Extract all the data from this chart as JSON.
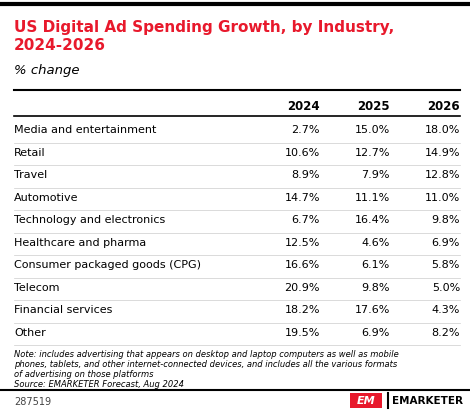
{
  "title_line1": "US Digital Ad Spending Growth, by Industry,",
  "title_line2": "2024-2026",
  "subtitle": "% change",
  "columns": [
    "",
    "2024",
    "2025",
    "2026"
  ],
  "rows": [
    [
      "Media and entertainment",
      "2.7%",
      "15.0%",
      "18.0%"
    ],
    [
      "Retail",
      "10.6%",
      "12.7%",
      "14.9%"
    ],
    [
      "Travel",
      "8.9%",
      "7.9%",
      "12.8%"
    ],
    [
      "Automotive",
      "14.7%",
      "11.1%",
      "11.0%"
    ],
    [
      "Technology and electronics",
      "6.7%",
      "16.4%",
      "9.8%"
    ],
    [
      "Healthcare and pharma",
      "12.5%",
      "4.6%",
      "6.9%"
    ],
    [
      "Consumer packaged goods (CPG)",
      "16.6%",
      "6.1%",
      "5.8%"
    ],
    [
      "Telecom",
      "20.9%",
      "9.8%",
      "5.0%"
    ],
    [
      "Financial services",
      "18.2%",
      "17.6%",
      "4.3%"
    ],
    [
      "Other",
      "19.5%",
      "6.9%",
      "8.2%"
    ]
  ],
  "note_line1": "Note: includes advertising that appears on desktop and laptop computers as well as mobile",
  "note_line2": "phones, tablets, and other internet-connected devices, and includes all the various formats",
  "note_line3": "of advertising on those platforms",
  "note_line4": "Source: EMARKETER Forecast, Aug 2024",
  "footer_id": "287519",
  "title_color": "#e8192c",
  "subtitle_color": "#000000",
  "header_color": "#000000",
  "value_color": "#000000",
  "note_color": "#000000",
  "bg_color": "#ffffff",
  "top_bar_color": "#000000",
  "bottom_bar_color": "#000000",
  "separator_color": "#cccccc",
  "logo_red": "#e8192c"
}
